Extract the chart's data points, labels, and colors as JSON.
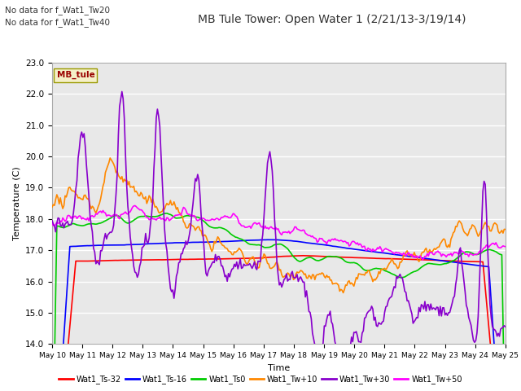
{
  "title": "MB Tule Tower: Open Water 1 (2/21/13-3/19/14)",
  "xlabel": "Time",
  "ylabel": "Temperature (C)",
  "ylim": [
    14.0,
    23.0
  ],
  "yticks": [
    14.0,
    15.0,
    16.0,
    17.0,
    18.0,
    19.0,
    20.0,
    21.0,
    22.0,
    23.0
  ],
  "xtick_labels": [
    "May 10",
    "May 11",
    "May 12",
    "May 13",
    "May 14",
    "May 15",
    "May 16",
    "May 17",
    "May 18",
    "May 19",
    "May 20",
    "May 21",
    "May 22",
    "May 23",
    "May 24",
    "May 25"
  ],
  "no_data_text1": "No data for f_Wat1_Tw20",
  "no_data_text2": "No data for f_Wat1_Tw40",
  "legend_label": "MB_tule",
  "plot_bg_color": "#e8e8e8",
  "series": {
    "Wat1_Ts-32": {
      "color": "#ff0000",
      "lw": 1.2
    },
    "Wat1_Ts-16": {
      "color": "#0000ff",
      "lw": 1.2
    },
    "Wat1_Ts0": {
      "color": "#00cc00",
      "lw": 1.2
    },
    "Wat1_Tw+10": {
      "color": "#ff8800",
      "lw": 1.2
    },
    "Wat1_Tw+30": {
      "color": "#8800cc",
      "lw": 1.2
    },
    "Wat1_Tw+50": {
      "color": "#ff00ff",
      "lw": 1.2
    }
  }
}
